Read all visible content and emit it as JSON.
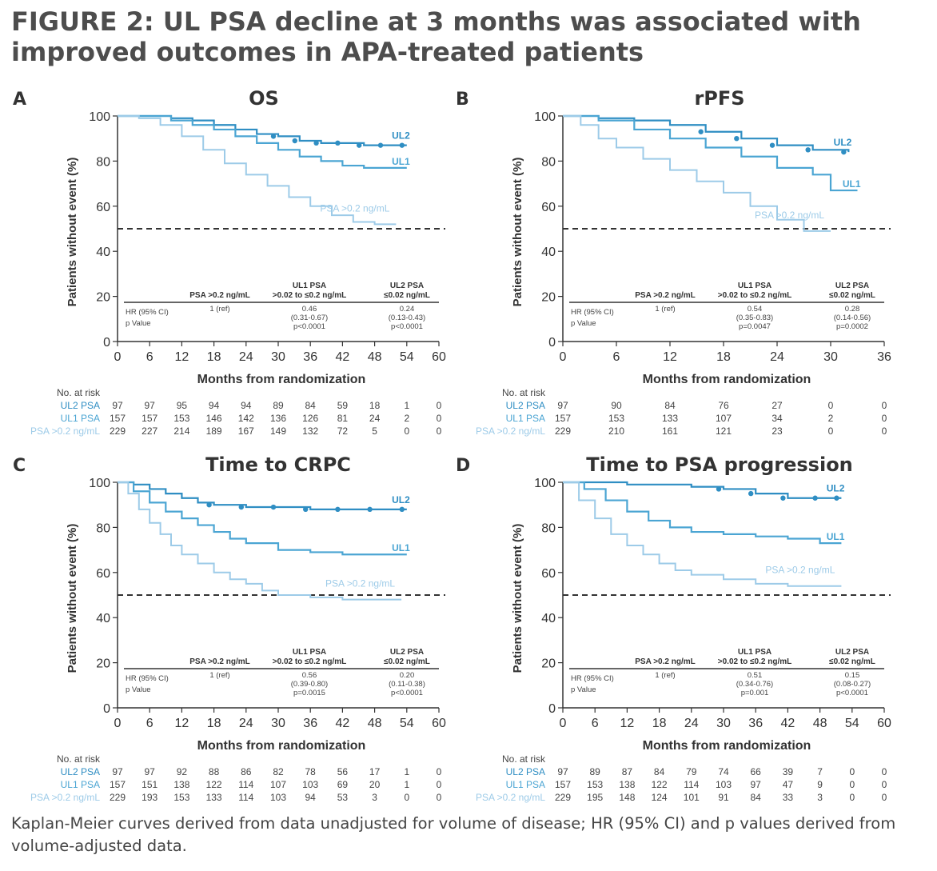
{
  "figure": {
    "title": "FIGURE 2: UL PSA decline at 3 months was associated with improved outcomes in APA-treated patients",
    "footnote": "Kaplan-Meier curves derived from data unadjusted for volume of disease; HR (95% CI) and p values derived from volume-adjusted data."
  },
  "colors": {
    "UL2": "#2f8ec3",
    "UL1": "#4ba5d3",
    "PSA": "#9dcbe8",
    "axis": "#333333",
    "text": "#3a3a3a"
  },
  "chart_data": [
    {
      "panel": "A",
      "type": "line",
      "title": "OS",
      "xlabel": "Months from randomization",
      "ylabel": "Patients without event (%)",
      "xticks": [
        0,
        6,
        12,
        18,
        24,
        30,
        36,
        42,
        48,
        54,
        60
      ],
      "yticks": [
        0,
        20,
        40,
        60,
        80,
        100
      ],
      "xlim": [
        0,
        60
      ],
      "ylim": [
        0,
        100
      ],
      "reference_line_y": 50,
      "series": [
        {
          "name": "UL2",
          "x": [
            0,
            6,
            10,
            14,
            18,
            22,
            26,
            30,
            34,
            38,
            42,
            46,
            50,
            54
          ],
          "y": [
            100,
            100,
            99,
            98,
            96,
            94,
            92,
            91,
            89,
            88,
            88,
            87,
            87,
            87
          ]
        },
        {
          "name": "UL1",
          "x": [
            0,
            6,
            10,
            14,
            18,
            22,
            26,
            30,
            34,
            38,
            42,
            46,
            50,
            54
          ],
          "y": [
            100,
            100,
            98,
            96,
            94,
            91,
            88,
            85,
            82,
            80,
            78,
            77,
            77,
            77
          ]
        },
        {
          "name": "PSA >0.2 ng/mL",
          "x": [
            0,
            4,
            8,
            12,
            16,
            20,
            24,
            28,
            32,
            36,
            40,
            44,
            48,
            52
          ],
          "y": [
            100,
            99,
            96,
            91,
            85,
            79,
            74,
            69,
            64,
            60,
            56,
            53,
            52,
            52
          ]
        }
      ],
      "hr_table": {
        "headers": [
          "PSA >0.2 ng/mL",
          "UL1 PSA|>0.02 to ≤0.2 ng/mL",
          "UL2 PSA|≤0.02 ng/mL"
        ],
        "rows": [
          {
            "label": "HR (95% CI)",
            "values": [
              "1 (ref)",
              "0.46|(0.31-0.67)",
              "0.24|(0.13-0.43)"
            ]
          },
          {
            "label": "p Value",
            "values": [
              "",
              "p<0.0001",
              "p<0.0001"
            ]
          }
        ]
      },
      "risk_table": {
        "title": "No. at risk",
        "times": [
          0,
          6,
          12,
          18,
          24,
          30,
          36,
          42,
          48,
          54,
          60
        ],
        "rows": [
          {
            "label": "UL2 PSA",
            "series": "UL2",
            "values": [
              "97",
              "97",
              "95",
              "94",
              "94",
              "89",
              "84",
              "59",
              "18",
              "1",
              "0"
            ]
          },
          {
            "label": "UL1 PSA",
            "series": "UL1",
            "values": [
              "157",
              "157",
              "153",
              "146",
              "142",
              "136",
              "126",
              "81",
              "24",
              "2",
              "0"
            ]
          },
          {
            "label": "PSA >0.2 ng/mL",
            "series": "PSA",
            "values": [
              "229",
              "227",
              "214",
              "189",
              "167",
              "149",
              "132",
              "72",
              "5",
              "0",
              "0"
            ]
          }
        ]
      }
    },
    {
      "panel": "B",
      "type": "line",
      "title": "rPFS",
      "xlabel": "Months from randomization",
      "ylabel": "Patients without event (%)",
      "xticks": [
        0,
        6,
        12,
        18,
        24,
        30,
        36
      ],
      "yticks": [
        0,
        20,
        40,
        60,
        80,
        100
      ],
      "xlim": [
        0,
        36
      ],
      "ylim": [
        0,
        100
      ],
      "reference_line_y": 50,
      "series": [
        {
          "name": "UL2",
          "x": [
            0,
            4,
            8,
            12,
            16,
            20,
            24,
            28,
            32
          ],
          "y": [
            100,
            99,
            98,
            96,
            93,
            90,
            87,
            85,
            84
          ]
        },
        {
          "name": "UL1",
          "x": [
            0,
            4,
            8,
            12,
            16,
            20,
            24,
            28,
            30,
            33
          ],
          "y": [
            100,
            98,
            94,
            90,
            86,
            82,
            77,
            74,
            67,
            67
          ]
        },
        {
          "name": "PSA >0.2 ng/mL",
          "x": [
            0,
            2,
            4,
            6,
            9,
            12,
            15,
            18,
            21,
            24,
            27,
            30
          ],
          "y": [
            100,
            96,
            90,
            86,
            81,
            76,
            71,
            66,
            60,
            54,
            49,
            49
          ]
        }
      ],
      "hr_table": {
        "headers": [
          "PSA >0.2 ng/mL",
          "UL1 PSA|>0.02 to ≤0.2 ng/mL",
          "UL2 PSA|≤0.02 ng/mL"
        ],
        "rows": [
          {
            "label": "HR (95% CI)",
            "values": [
              "1 (ref)",
              "0.54|(0.35-0.83)",
              "0.28|(0.14-0.56)"
            ]
          },
          {
            "label": "p Value",
            "values": [
              "",
              "p=0.0047",
              "p=0.0002"
            ]
          }
        ]
      },
      "risk_table": {
        "title": "No. at risk",
        "times": [
          0,
          6,
          12,
          18,
          24,
          30,
          36
        ],
        "rows": [
          {
            "label": "UL2 PSA",
            "series": "UL2",
            "values": [
              "97",
              "90",
              "84",
              "76",
              "27",
              "0",
              "0"
            ]
          },
          {
            "label": "UL1 PSA",
            "series": "UL1",
            "values": [
              "157",
              "153",
              "133",
              "107",
              "34",
              "2",
              "0"
            ]
          },
          {
            "label": "PSA >0.2 ng/mL",
            "series": "PSA",
            "values": [
              "229",
              "210",
              "161",
              "121",
              "23",
              "0",
              "0"
            ]
          }
        ]
      }
    },
    {
      "panel": "C",
      "type": "line",
      "title": "Time to CRPC",
      "xlabel": "Months from randomization",
      "ylabel": "Patients without event (%)",
      "xticks": [
        0,
        6,
        12,
        18,
        24,
        30,
        36,
        42,
        48,
        54,
        60
      ],
      "yticks": [
        0,
        20,
        40,
        60,
        80,
        100
      ],
      "xlim": [
        0,
        60
      ],
      "ylim": [
        0,
        100
      ],
      "reference_line_y": 50,
      "series": [
        {
          "name": "UL2",
          "x": [
            0,
            3,
            6,
            9,
            12,
            15,
            18,
            24,
            30,
            36,
            42,
            48,
            54
          ],
          "y": [
            100,
            99,
            97,
            95,
            93,
            91,
            90,
            89,
            89,
            88,
            88,
            88,
            88
          ]
        },
        {
          "name": "UL1",
          "x": [
            0,
            3,
            6,
            9,
            12,
            15,
            18,
            21,
            24,
            30,
            36,
            42,
            48,
            54
          ],
          "y": [
            100,
            96,
            91,
            87,
            84,
            81,
            78,
            75,
            73,
            70,
            69,
            68,
            68,
            68
          ]
        },
        {
          "name": "PSA >0.2 ng/mL",
          "x": [
            0,
            2,
            4,
            6,
            8,
            10,
            12,
            15,
            18,
            21,
            24,
            27,
            30,
            36,
            42,
            48,
            53
          ],
          "y": [
            100,
            95,
            88,
            82,
            77,
            72,
            68,
            64,
            60,
            57,
            55,
            52,
            50,
            49,
            48,
            48,
            48
          ]
        }
      ],
      "hr_table": {
        "headers": [
          "PSA >0.2 ng/mL",
          "UL1 PSA|>0.02 to ≤0.2 ng/mL",
          "UL2 PSA|≤0.02 ng/mL"
        ],
        "rows": [
          {
            "label": "HR (95% CI)",
            "values": [
              "1 (ref)",
              "0.56|(0.39-0.80)",
              "0.20|(0.11-0.38)"
            ]
          },
          {
            "label": "p Value",
            "values": [
              "",
              "p=0.0015",
              "p<0.0001"
            ]
          }
        ]
      },
      "risk_table": {
        "title": "No. at risk",
        "times": [
          0,
          6,
          12,
          18,
          24,
          30,
          36,
          42,
          48,
          54,
          60
        ],
        "rows": [
          {
            "label": "UL2 PSA",
            "series": "UL2",
            "values": [
              "97",
              "97",
              "92",
              "88",
              "86",
              "82",
              "78",
              "56",
              "17",
              "1",
              "0"
            ]
          },
          {
            "label": "UL1 PSA",
            "series": "UL1",
            "values": [
              "157",
              "151",
              "138",
              "122",
              "114",
              "107",
              "103",
              "69",
              "20",
              "1",
              "0"
            ]
          },
          {
            "label": "PSA >0.2 ng/mL",
            "series": "PSA",
            "values": [
              "229",
              "193",
              "153",
              "133",
              "114",
              "103",
              "94",
              "53",
              "3",
              "0",
              "0"
            ]
          }
        ]
      }
    },
    {
      "panel": "D",
      "type": "line",
      "title": "Time to PSA progression",
      "xlabel": "Months from randomization",
      "ylabel": "Patients without event (%)",
      "xticks": [
        0,
        6,
        12,
        18,
        24,
        30,
        36,
        42,
        48,
        54,
        60
      ],
      "yticks": [
        0,
        20,
        40,
        60,
        80,
        100
      ],
      "xlim": [
        0,
        60
      ],
      "ylim": [
        0,
        100
      ],
      "reference_line_y": 50,
      "series": [
        {
          "name": "UL2",
          "x": [
            0,
            6,
            12,
            18,
            24,
            30,
            36,
            42,
            48,
            52
          ],
          "y": [
            100,
            100,
            99,
            99,
            98,
            97,
            95,
            93,
            93,
            93
          ]
        },
        {
          "name": "UL1",
          "x": [
            0,
            4,
            8,
            12,
            16,
            20,
            24,
            30,
            36,
            42,
            48,
            52
          ],
          "y": [
            100,
            97,
            92,
            87,
            83,
            80,
            78,
            77,
            76,
            75,
            73,
            73
          ]
        },
        {
          "name": "PSA >0.2 ng/mL",
          "x": [
            0,
            3,
            6,
            9,
            12,
            15,
            18,
            21,
            24,
            30,
            36,
            42,
            48,
            52
          ],
          "y": [
            100,
            92,
            84,
            77,
            72,
            68,
            64,
            61,
            59,
            57,
            55,
            54,
            54,
            54
          ]
        }
      ],
      "hr_table": {
        "headers": [
          "PSA >0.2 ng/mL",
          "UL1 PSA|>0.02 to ≤0.2 ng/mL",
          "UL2 PSA|≤0.02 ng/mL"
        ],
        "rows": [
          {
            "label": "HR (95% CI)",
            "values": [
              "1 (ref)",
              "0.51|(0.34-0.76)",
              "0.15|(0.08-0.27)"
            ]
          },
          {
            "label": "p Value",
            "values": [
              "",
              "p=0.001",
              "p<0.0001"
            ]
          }
        ]
      },
      "risk_table": {
        "title": "No. at risk",
        "times": [
          0,
          6,
          12,
          18,
          24,
          30,
          36,
          42,
          48,
          54,
          60
        ],
        "rows": [
          {
            "label": "UL2 PSA",
            "series": "UL2",
            "values": [
              "97",
              "89",
              "87",
              "84",
              "79",
              "74",
              "66",
              "39",
              "7",
              "0",
              "0"
            ]
          },
          {
            "label": "UL1 PSA",
            "series": "UL1",
            "values": [
              "157",
              "153",
              "138",
              "122",
              "114",
              "103",
              "97",
              "47",
              "9",
              "0",
              "0"
            ]
          },
          {
            "label": "PSA >0.2 ng/mL",
            "series": "PSA",
            "values": [
              "229",
              "195",
              "148",
              "124",
              "101",
              "91",
              "84",
              "33",
              "3",
              "0",
              "0"
            ]
          }
        ]
      }
    }
  ],
  "curve_labels": {
    "UL2": "UL2",
    "UL1": "UL1",
    "PSA": "PSA >0.2 ng/mL"
  }
}
